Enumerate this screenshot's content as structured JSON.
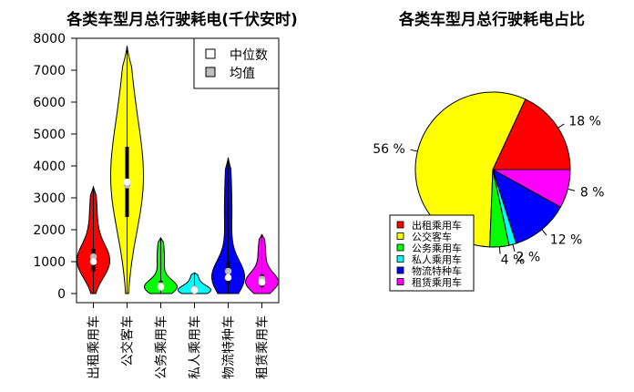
{
  "chart_data": [
    {
      "type": "violin",
      "title": "各类车型月总行驶耗电(千伏安时)",
      "ylim": [
        0,
        8000
      ],
      "yticks": [
        0,
        1000,
        2000,
        3000,
        4000,
        5000,
        6000,
        7000,
        8000
      ],
      "legend": {
        "placement": "top-right",
        "items": [
          "中位数",
          "均值"
        ]
      },
      "series": [
        {
          "name": "出租乘用车",
          "color": "#FF0000",
          "min": 0,
          "q1": 700,
          "median": 1000,
          "mean": 1150,
          "q3": 1400,
          "max": 3350
        },
        {
          "name": "公交客车",
          "color": "#FFFF00",
          "min": 0,
          "q1": 2400,
          "median": 3500,
          "mean": 3400,
          "q3": 4600,
          "max": 7750
        },
        {
          "name": "公务乘用车",
          "color": "#00FF00",
          "min": 0,
          "q1": 100,
          "median": 200,
          "mean": 250,
          "q3": 400,
          "max": 1750
        },
        {
          "name": "私人乘用车",
          "color": "#00FFFF",
          "min": 0,
          "q1": 50,
          "median": 100,
          "mean": 150,
          "q3": 250,
          "max": 650
        },
        {
          "name": "物流特种车",
          "color": "#0000FF",
          "min": 0,
          "q1": 300,
          "median": 500,
          "mean": 700,
          "q3": 1000,
          "max": 4250
        },
        {
          "name": "租赁乘用车",
          "color": "#FF00FF",
          "min": 0,
          "q1": 200,
          "median": 350,
          "mean": 450,
          "q3": 600,
          "max": 1850
        }
      ]
    },
    {
      "type": "pie",
      "title": "各类车型月总行驶耗电占比",
      "legend": {
        "placement": "bottom-left"
      },
      "slices": [
        {
          "name": "出租乘用车",
          "color": "#FF0000",
          "value": 18,
          "label": "18 %"
        },
        {
          "name": "公交客车",
          "color": "#FFFF00",
          "value": 56,
          "label": "56 %"
        },
        {
          "name": "公务乘用车",
          "color": "#00FF00",
          "value": 4,
          "label": "4 %"
        },
        {
          "name": "私人乘用车",
          "color": "#00FFFF",
          "value": 1.5,
          "label": "2 %"
        },
        {
          "name": "物流特种车",
          "color": "#0000FF",
          "value": 12,
          "label": "12 %"
        },
        {
          "name": "租赁乘用车",
          "color": "#FF00FF",
          "value": 8,
          "label": "8 %"
        }
      ]
    }
  ]
}
